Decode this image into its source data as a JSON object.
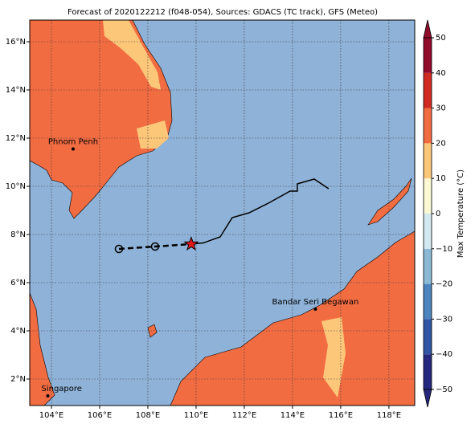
{
  "title": "Forecast of 2020122212 (f048-054), Sources: GDACS (TC track), GFS (Meteo)",
  "map": {
    "xlim": [
      103.1,
      119.07
    ],
    "ylim": [
      0.9,
      16.9
    ],
    "xticks": [
      {
        "value": 104,
        "label": "104°E"
      },
      {
        "value": 106,
        "label": "106°E"
      },
      {
        "value": 108,
        "label": "108°E"
      },
      {
        "value": 110,
        "label": "110°E"
      },
      {
        "value": 112,
        "label": "112°E"
      },
      {
        "value": 114,
        "label": "114°E"
      },
      {
        "value": 116,
        "label": "116°E"
      },
      {
        "value": 118,
        "label": "118°E"
      }
    ],
    "yticks": [
      {
        "value": 2,
        "label": "2°N"
      },
      {
        "value": 4,
        "label": "4°N"
      },
      {
        "value": 6,
        "label": "6°N"
      },
      {
        "value": 8,
        "label": "8°N"
      },
      {
        "value": 10,
        "label": "10°N"
      },
      {
        "value": 12,
        "label": "12°N"
      },
      {
        "value": 14,
        "label": "14°N"
      },
      {
        "value": 16,
        "label": "16°N"
      }
    ],
    "grid": true,
    "cities": [
      {
        "name": "Phnom Penh",
        "lon": 104.9,
        "lat": 11.55
      },
      {
        "name": "Bandar Seri Begawan",
        "lon": 114.95,
        "lat": 4.9
      },
      {
        "name": "Singapore",
        "lon": 103.85,
        "lat": 1.3
      }
    ],
    "track_observed": {
      "lon": [
        109.8,
        110.3,
        111.0,
        111.5,
        112.2,
        113.0,
        113.9,
        114.2,
        114.2,
        114.9,
        115.5
      ],
      "lat": [
        7.6,
        7.65,
        7.9,
        8.7,
        8.9,
        9.3,
        9.8,
        9.8,
        10.1,
        10.3,
        9.9
      ]
    },
    "track_forecast": {
      "lon": [
        106.8,
        108.3,
        109.8
      ],
      "lat": [
        7.4,
        7.5,
        7.6
      ]
    }
  },
  "colorbar": {
    "label": "Max Temperature (°C)",
    "ticks": [
      {
        "value": -50,
        "label": "−50"
      },
      {
        "value": -40,
        "label": "−40"
      },
      {
        "value": -30,
        "label": "−30"
      },
      {
        "value": -20,
        "label": "−20"
      },
      {
        "value": -10,
        "label": "−10"
      },
      0,
      10,
      20,
      30,
      40,
      50
    ],
    "colors": [
      "#26287f",
      "#2f55a4",
      "#4c84bd",
      "#8cbad6",
      "#d3e9f0",
      "#fbf8d4",
      "#fdc77a",
      "#f26c42",
      "#d02b22",
      "#930b2b"
    ]
  }
}
